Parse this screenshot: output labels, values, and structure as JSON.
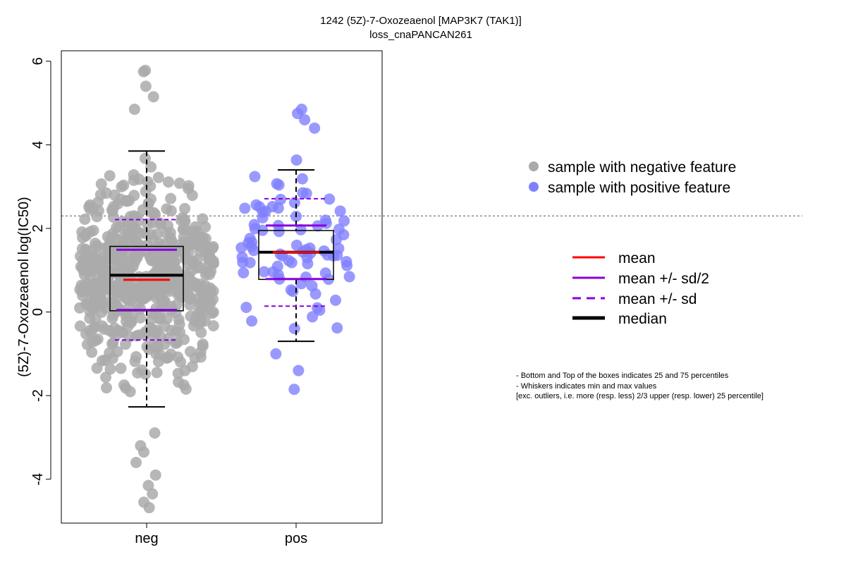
{
  "chart_data": {
    "type": "scatter",
    "title": "1242 (5Z)-7-Oxozeaenol [MAP3K7 (TAK1)]",
    "subtitle": "loss_cnaPANCAN261",
    "ylabel": "(5Z)-7-Oxozeaenol log(IC50)",
    "xlabel": "",
    "categories": [
      "neg",
      "pos"
    ],
    "ylim": [
      -5.05,
      6.25
    ],
    "yticks": [
      -4,
      -2,
      0,
      2,
      4,
      6
    ],
    "ytick_labels": [
      "-4",
      "-2",
      "0",
      "2",
      "4",
      "6"
    ],
    "threshold_line": 2.3,
    "groups": [
      {
        "name": "neg",
        "color": "#aaaaaa",
        "box": {
          "q1": 0.03,
          "median": 0.88,
          "q3": 1.57,
          "whisker_low": -2.27,
          "whisker_high": 3.85
        },
        "mean": 0.77,
        "mean_minus_half_sd": 0.05,
        "mean_plus_half_sd": 1.49,
        "mean_minus_sd": -0.67,
        "mean_plus_sd": 2.21,
        "sample_count": 600,
        "highlighted_values": [
          5.78,
          5.75,
          5.4,
          5.15,
          4.85,
          -3.2,
          -3.35,
          -3.6,
          -3.9,
          -4.15,
          -4.35,
          -4.55,
          -4.68
        ]
      },
      {
        "name": "pos",
        "color": "#8080ff",
        "box": {
          "q1": 0.78,
          "median": 1.43,
          "q3": 1.95,
          "whisker_low": -0.7,
          "whisker_high": 3.4
        },
        "mean": 1.43,
        "mean_minus_half_sd": 0.79,
        "mean_plus_half_sd": 2.07,
        "mean_minus_sd": 0.14,
        "mean_plus_sd": 2.71,
        "sample_count": 90,
        "highlighted_values": [
          4.85,
          4.75,
          4.6,
          4.4,
          -1.4,
          -1.0,
          -1.85
        ]
      }
    ],
    "legend": {
      "placement": "right",
      "points": [
        {
          "label": "sample with negative feature",
          "color": "#aaaaaa"
        },
        {
          "label": "sample with positive feature",
          "color": "#8080ff"
        }
      ],
      "lines": [
        {
          "label": "mean",
          "color": "#ff0000",
          "style": "solid"
        },
        {
          "label": "mean +/- sd/2",
          "color": "#8800dd",
          "style": "solid"
        },
        {
          "label": "mean +/- sd",
          "color": "#8800dd",
          "style": "dashed"
        },
        {
          "label": "median",
          "color": "#000000",
          "style": "thick"
        }
      ]
    },
    "notes": [
      "- Bottom and Top of the boxes indicates 25 and 75 percentiles",
      "- Whiskers indicates min and max values",
      "[exc. outliers, i.e. more (resp. less) 2/3 upper (resp. lower) 25 percentile]"
    ],
    "grid": false
  }
}
